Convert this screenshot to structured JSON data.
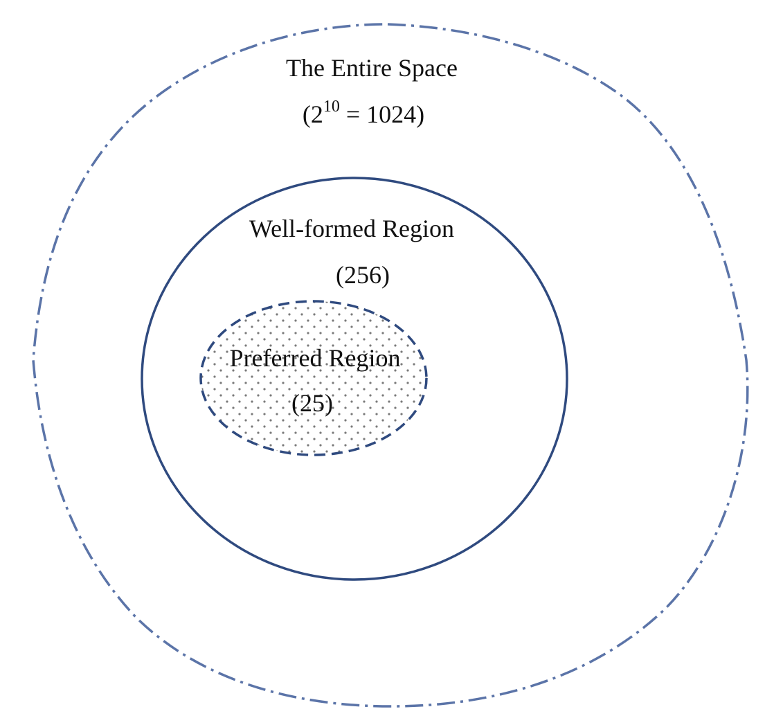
{
  "colors": {
    "outer_stroke": "#5b74a8",
    "middle_stroke": "#2f4a7f",
    "inner_stroke": "#2f4a7f",
    "dot_fill": "#7a7a7a",
    "text": "#111111"
  },
  "regions": {
    "outer": {
      "title": "The Entire Space",
      "count_open": "(",
      "count_base": "2",
      "count_exponent": "10",
      "count_rest": " = 1024",
      "count_close": ")",
      "border": "dash-dot"
    },
    "middle": {
      "title": "Well-formed Region",
      "count": "(256)",
      "border": "solid"
    },
    "inner": {
      "title": "Preferred Region",
      "count": "(25)",
      "border": "dashed",
      "fill": "dotted-pattern"
    }
  }
}
